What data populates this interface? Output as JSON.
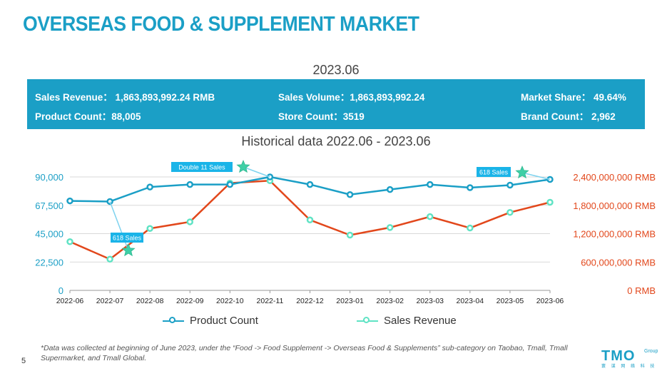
{
  "page_title": "OVERSEAS FOOD & SUPPLEMENT MARKET",
  "period": "2023.06",
  "summary": {
    "sales_revenue": "Sales Revenue： 1,863,893,992.24  RMB",
    "sales_volume": "Sales Volume：1,863,893,992.24",
    "market_share": "Market Share： 49.64%",
    "product_count": "Product Count：88,005",
    "store_count": "Store Count：3519",
    "brand_count": "Brand Count： 2,962"
  },
  "footnote": "*Data was collected at beginning of June 2023, under the “Food -> Food Supplement -> Overseas Food & Supplements” sub-category on Taobao, Tmall, Tmall Supermarket, and Tmall Global.",
  "page_number": "5",
  "logo": {
    "brand": "TMO",
    "group": "Group",
    "sub": "寰 谋 网 络 科 技"
  },
  "colors": {
    "accent": "#1b9fc6",
    "product_line": "#1b9fc6",
    "revenue_line": "#e2471b",
    "revenue_marker": "#5fe3c4",
    "annotation_bg": "#1ab4e8"
  },
  "chart_data": {
    "type": "line",
    "title": "Historical data 2022.06 - 2023.06",
    "categories": [
      "2022-06",
      "2022-07",
      "2022-08",
      "2022-09",
      "2022-10",
      "2022-11",
      "2022-12",
      "2023-01",
      "2023-02",
      "2023-03",
      "2023-04",
      "2023-05",
      "2023-06"
    ],
    "series": [
      {
        "name": "Product Count",
        "axis": "left",
        "color": "#1b9fc6",
        "values": [
          71000,
          70500,
          82000,
          84000,
          84000,
          90000,
          84000,
          76000,
          80000,
          84000,
          81500,
          83500,
          88005
        ]
      },
      {
        "name": "Sales Revenue",
        "axis": "right",
        "color": "#e2471b",
        "values": [
          1030000000,
          660000000,
          1310000000,
          1450000000,
          2270000000,
          2320000000,
          1490000000,
          1170000000,
          1330000000,
          1560000000,
          1320000000,
          1650000000,
          1863893992.24
        ]
      }
    ],
    "left_axis": {
      "ylim": [
        0,
        90000
      ],
      "ticks": [
        "0",
        "22,500",
        "45,000",
        "67,500",
        "90,000"
      ]
    },
    "right_axis": {
      "ylim": [
        0,
        2400000000
      ],
      "ticks": [
        "0 RMB",
        "600,000,000 RMB",
        "1,200,000,000 RMB",
        "1,800,000,000 RMB",
        "2,400,000,000 RMB"
      ]
    },
    "annotations": [
      {
        "text": "618 Sales",
        "category": "2022-07"
      },
      {
        "text": "Double 11 Sales",
        "category": "2022-11"
      },
      {
        "text": "618 Sales",
        "category": "2023-06"
      }
    ],
    "legend": {
      "placement": "bottom",
      "items": [
        "Product Count",
        "Sales Revenue"
      ]
    },
    "grid": "horizontal"
  }
}
